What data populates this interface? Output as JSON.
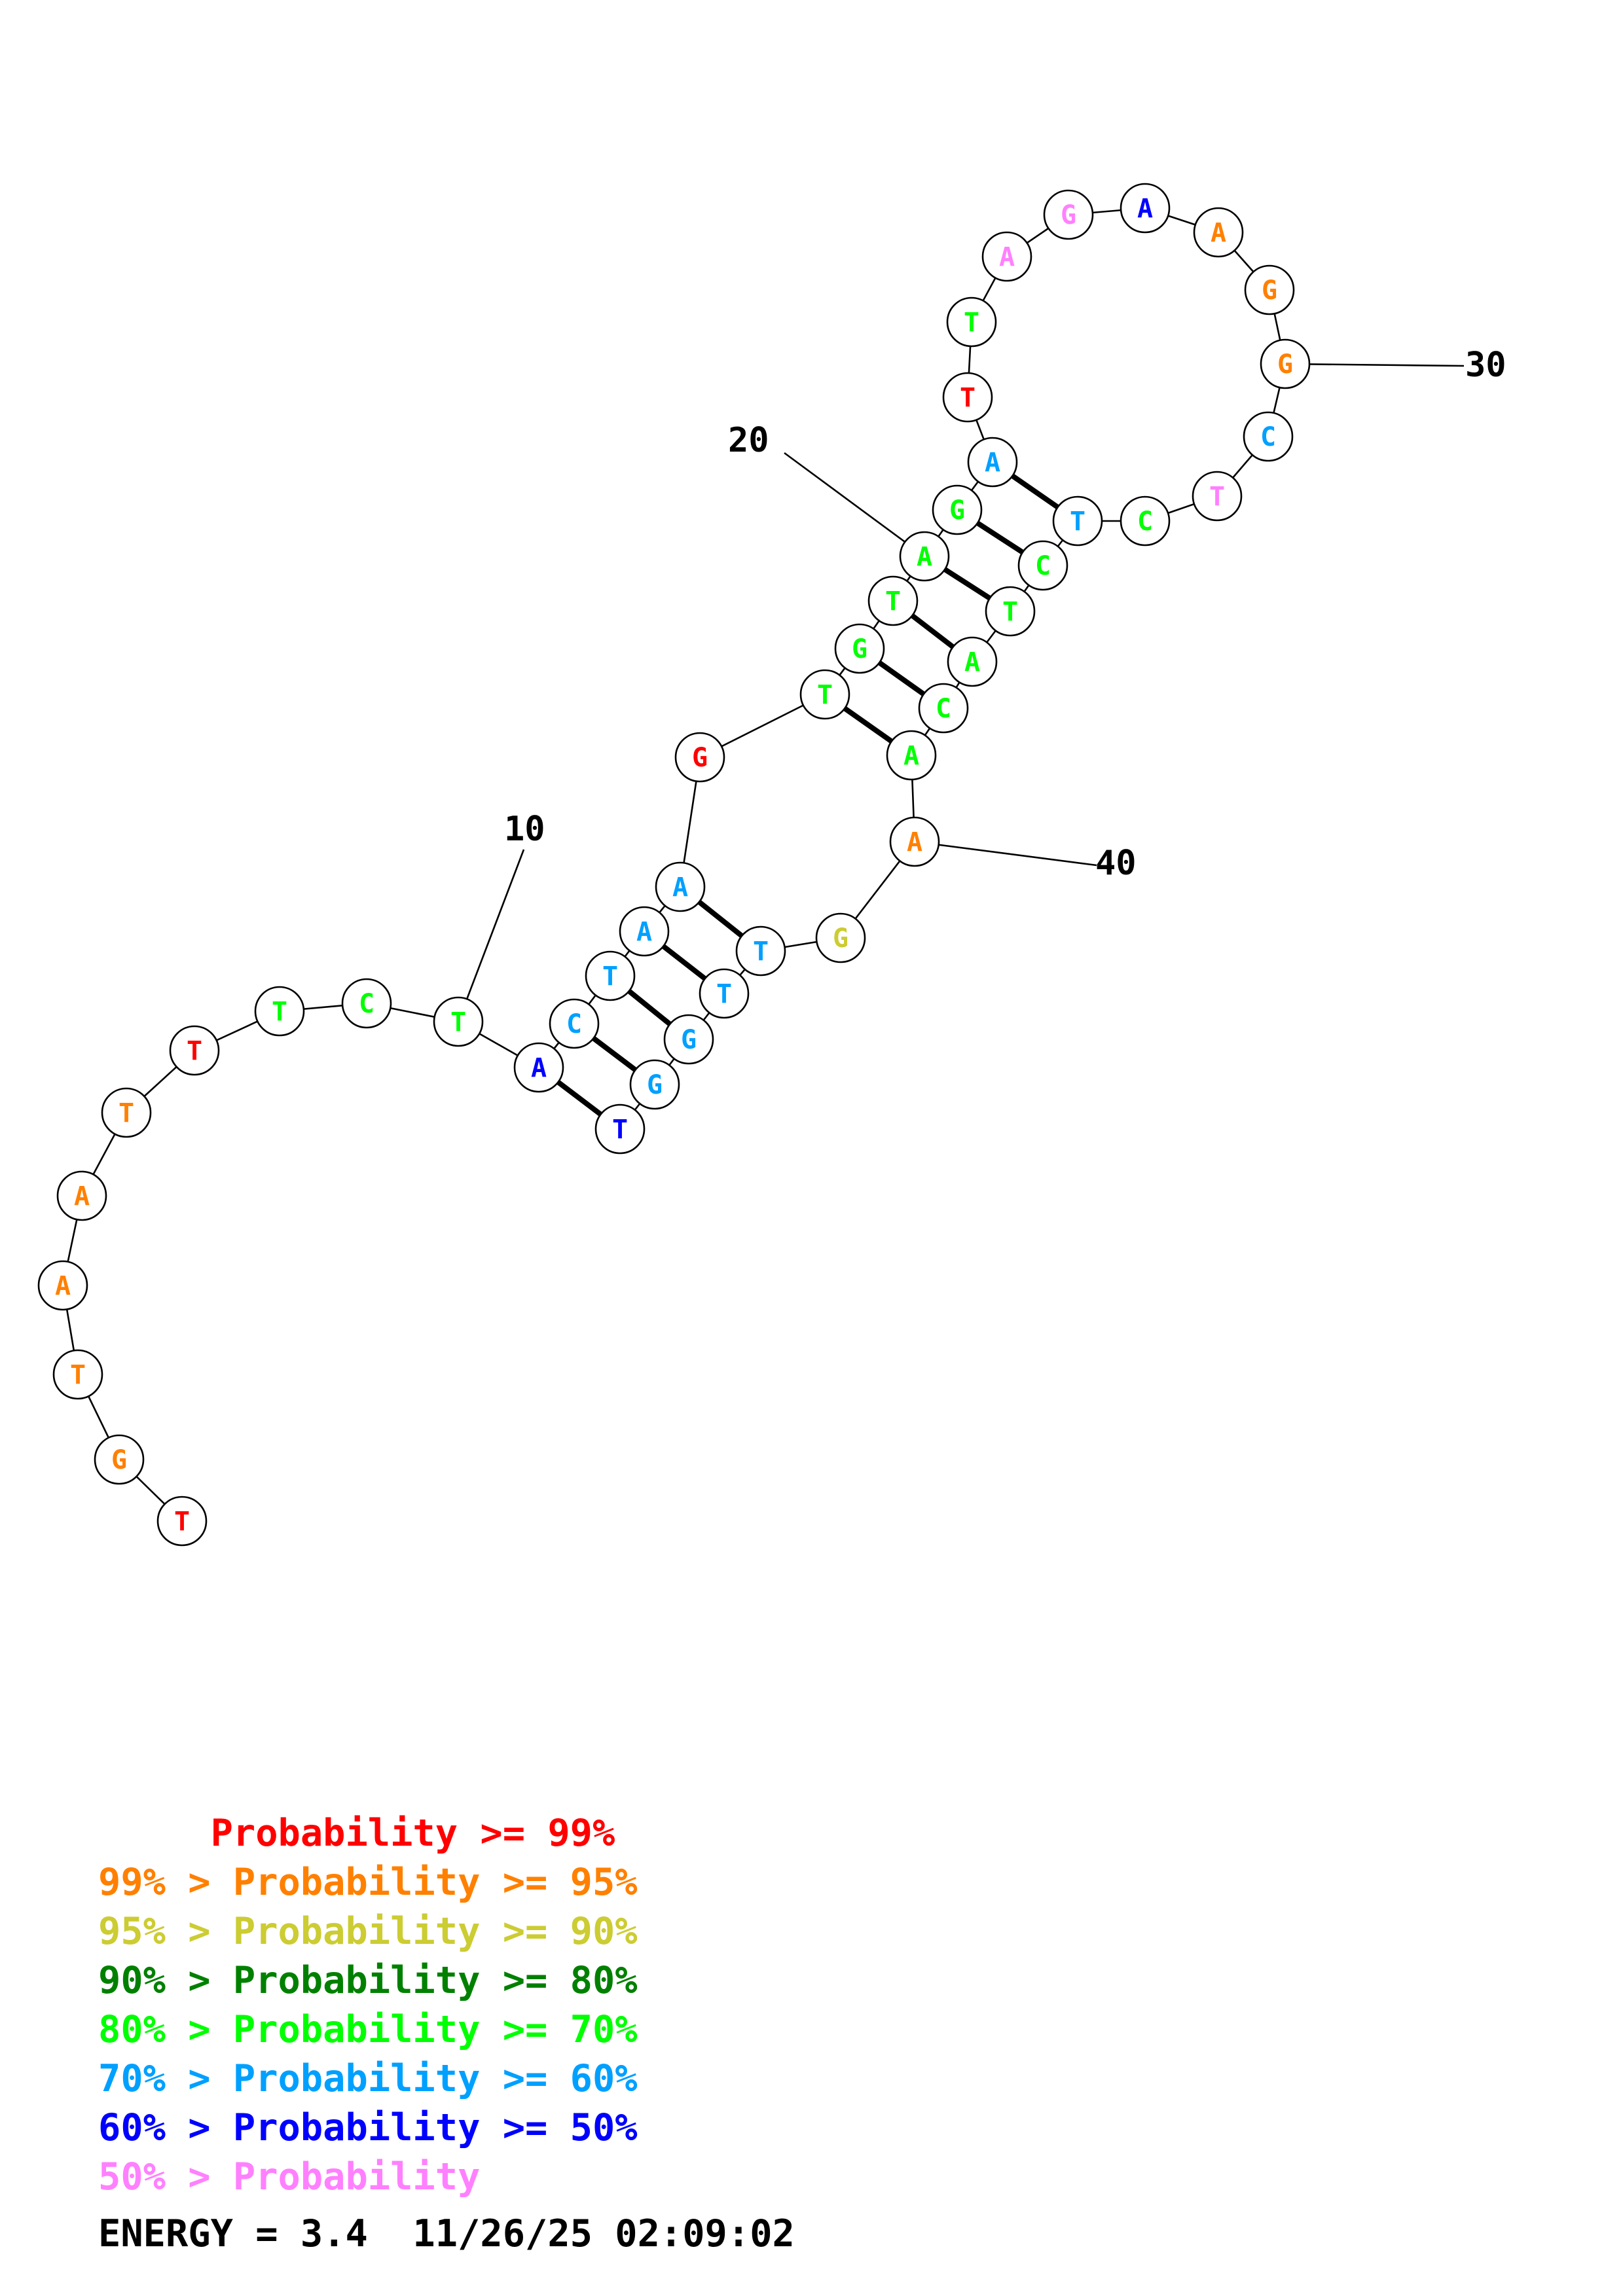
{
  "colors": {
    "red": "#ff0000",
    "orange": "#ff8000",
    "olive": "#cccc33",
    "dark_green": "#008000",
    "green": "#00ff00",
    "light_blue": "#00a0ff",
    "blue": "#0000ff",
    "pink": "#ff80ff"
  },
  "sequence": [
    {
      "base": "T",
      "color": "red"
    },
    {
      "base": "G",
      "color": "orange"
    },
    {
      "base": "T",
      "color": "orange"
    },
    {
      "base": "A",
      "color": "orange"
    },
    {
      "base": "A",
      "color": "orange"
    },
    {
      "base": "T",
      "color": "orange"
    },
    {
      "base": "T",
      "color": "red"
    },
    {
      "base": "T",
      "color": "green"
    },
    {
      "base": "C",
      "color": "green"
    },
    {
      "base": "T",
      "color": "green"
    },
    {
      "base": "A",
      "color": "blue"
    },
    {
      "base": "C",
      "color": "light_blue"
    },
    {
      "base": "T",
      "color": "light_blue"
    },
    {
      "base": "A",
      "color": "light_blue"
    },
    {
      "base": "A",
      "color": "light_blue"
    },
    {
      "base": "G",
      "color": "red"
    },
    {
      "base": "T",
      "color": "green"
    },
    {
      "base": "G",
      "color": "green"
    },
    {
      "base": "T",
      "color": "green"
    },
    {
      "base": "A",
      "color": "green"
    },
    {
      "base": "G",
      "color": "green"
    },
    {
      "base": "A",
      "color": "light_blue"
    },
    {
      "base": "T",
      "color": "red"
    },
    {
      "base": "T",
      "color": "green"
    },
    {
      "base": "A",
      "color": "pink"
    },
    {
      "base": "G",
      "color": "pink"
    },
    {
      "base": "A",
      "color": "blue"
    },
    {
      "base": "A",
      "color": "orange"
    },
    {
      "base": "G",
      "color": "orange"
    },
    {
      "base": "G",
      "color": "orange"
    },
    {
      "base": "C",
      "color": "light_blue"
    },
    {
      "base": "T",
      "color": "pink"
    },
    {
      "base": "C",
      "color": "green"
    },
    {
      "base": "T",
      "color": "light_blue"
    },
    {
      "base": "C",
      "color": "green"
    },
    {
      "base": "T",
      "color": "green"
    },
    {
      "base": "A",
      "color": "green"
    },
    {
      "base": "C",
      "color": "green"
    },
    {
      "base": "A",
      "color": "green"
    },
    {
      "base": "A",
      "color": "orange"
    },
    {
      "base": "G",
      "color": "olive"
    },
    {
      "base": "T",
      "color": "light_blue"
    },
    {
      "base": "T",
      "color": "light_blue"
    },
    {
      "base": "G",
      "color": "light_blue"
    },
    {
      "base": "G",
      "color": "light_blue"
    },
    {
      "base": "T",
      "color": "blue"
    }
  ],
  "base_pairs": [
    [
      11,
      46
    ],
    [
      12,
      45
    ],
    [
      13,
      44
    ],
    [
      14,
      43
    ],
    [
      15,
      42
    ],
    [
      17,
      39
    ],
    [
      18,
      38
    ],
    [
      19,
      37
    ],
    [
      20,
      36
    ],
    [
      21,
      35
    ],
    [
      22,
      34
    ]
  ],
  "position_labels": [
    {
      "position": 10,
      "text": "10"
    },
    {
      "position": 20,
      "text": "20"
    },
    {
      "position": 30,
      "text": "30"
    },
    {
      "position": 40,
      "text": "40"
    }
  ],
  "legend": [
    {
      "text": "     Probability >= 99%",
      "color": "red"
    },
    {
      "text": "99% > Probability >= 95%",
      "color": "orange"
    },
    {
      "text": "95% > Probability >= 90%",
      "color": "olive"
    },
    {
      "text": "90% > Probability >= 80%",
      "color": "dark_green"
    },
    {
      "text": "80% > Probability >= 70%",
      "color": "green"
    },
    {
      "text": "70% > Probability >= 60%",
      "color": "light_blue"
    },
    {
      "text": "60% > Probability >= 50%",
      "color": "blue"
    },
    {
      "text": "50% > Probability",
      "color": "pink"
    }
  ],
  "energy_line": "ENERGY = 3.4  11/26/25 02:09:02"
}
